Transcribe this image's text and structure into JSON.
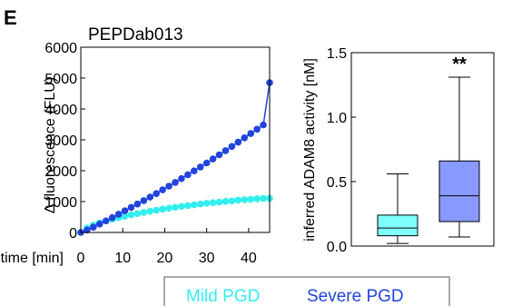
{
  "panel_letter": "E",
  "legend": {
    "items": [
      {
        "label": "Mild PGD",
        "color": "#33eeee"
      },
      {
        "label": "Severe PGD",
        "color": "#2244dd"
      }
    ]
  },
  "chart_data": [
    {
      "type": "line",
      "title": "PEPDab013",
      "xlabel": "time [min]",
      "ylabel": "Δ fluorescence (FLU)",
      "xlim": [
        0,
        45
      ],
      "ylim": [
        0,
        6000
      ],
      "xticks": [
        0,
        10,
        20,
        30,
        40
      ],
      "yticks": [
        0,
        1000,
        2000,
        3000,
        4000,
        5000,
        6000
      ],
      "grid": false,
      "x": [
        0,
        1.5,
        3,
        4.5,
        6,
        7.5,
        9,
        10.5,
        12,
        13.5,
        15,
        16.5,
        18,
        19.5,
        21,
        22.5,
        24,
        25.5,
        27,
        28.5,
        30,
        31.5,
        33,
        34.5,
        36,
        37.5,
        39,
        40.5,
        42,
        43.5,
        45
      ],
      "series": [
        {
          "name": "Mild PGD",
          "color": "#33eeee",
          "values": [
            0,
            145,
            235,
            310,
            375,
            430,
            480,
            525,
            570,
            610,
            650,
            685,
            720,
            755,
            785,
            815,
            845,
            870,
            895,
            920,
            945,
            965,
            985,
            1005,
            1025,
            1045,
            1060,
            1075,
            1090,
            1100,
            1105
          ]
        },
        {
          "name": "Severe PGD",
          "color": "#2244dd",
          "values": [
            0,
            80,
            170,
            270,
            375,
            480,
            590,
            700,
            810,
            920,
            1030,
            1145,
            1260,
            1380,
            1500,
            1620,
            1745,
            1870,
            1995,
            2120,
            2250,
            2380,
            2515,
            2650,
            2785,
            2925,
            3065,
            3205,
            3345,
            3485,
            4850
          ]
        }
      ]
    },
    {
      "type": "box",
      "title": "",
      "xlabel": "",
      "ylabel": "inferred ADAM8 activity [nM]",
      "ylim": [
        0,
        1.5
      ],
      "yticks": [
        0.0,
        0.5,
        1.0,
        1.5
      ],
      "ytick_labels": [
        "0.0",
        "0.5",
        "1.0",
        "1.5"
      ],
      "grid": false,
      "boxes": [
        {
          "name": "Mild PGD",
          "color": "#80ffff",
          "min": 0.02,
          "q1": 0.08,
          "median": 0.14,
          "q3": 0.24,
          "max": 0.56
        },
        {
          "name": "Severe PGD",
          "color": "#8899ff",
          "min": 0.07,
          "q1": 0.19,
          "median": 0.39,
          "q3": 0.66,
          "max": 1.31
        }
      ],
      "annotations": [
        {
          "text": "**",
          "box": 1
        }
      ]
    }
  ]
}
